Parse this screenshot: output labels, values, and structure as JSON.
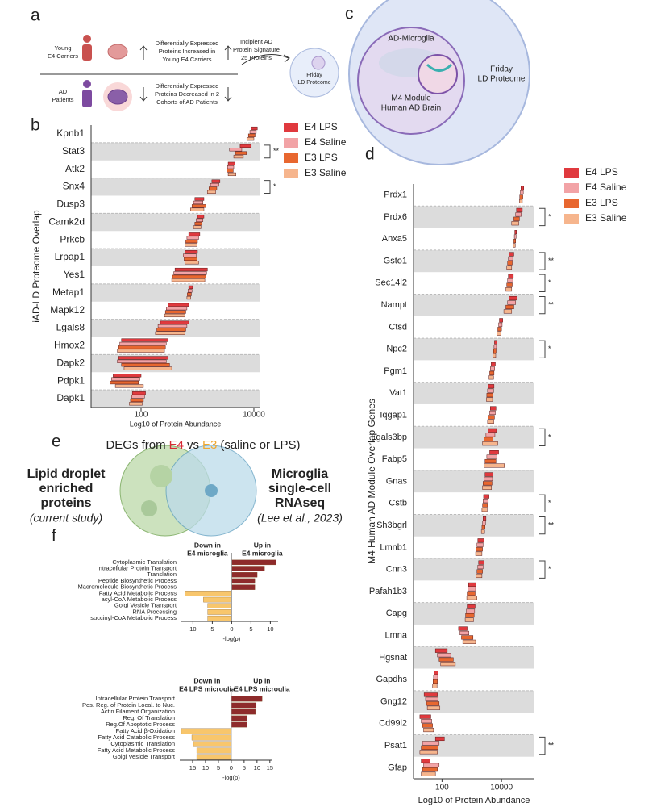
{
  "panel_labels": [
    "a",
    "b",
    "c",
    "d",
    "e",
    "f"
  ],
  "panel_a": {
    "young": [
      "Young",
      "E4 Carriers"
    ],
    "young_desc": [
      "Differentially Expressed",
      "Proteins Increased in",
      "Young E4 Carriers"
    ],
    "ad": [
      "AD",
      "Patients"
    ],
    "ad_desc": [
      "Differentially Expressed",
      "Proteins Decreased in 2",
      "Cohorts of AD Patients"
    ],
    "signature": [
      "Incipient AD",
      "Protein Signature",
      "25 Proteins"
    ],
    "friday": [
      "Friday",
      "LD Proteome"
    ]
  },
  "panel_c": {
    "microglia": "AD-Microglia",
    "m4": [
      "M4 Module",
      "Human AD Brain"
    ],
    "friday": [
      "Friday",
      "LD Proteome"
    ]
  },
  "panel_e": {
    "title": [
      "DEGs from",
      "E4",
      "vs",
      "E3",
      "(saline or LPS)"
    ],
    "left": [
      "Lipid droplet",
      "enriched",
      "proteins"
    ],
    "left_note": "(current study)",
    "right": [
      "Microglia",
      "single-cell",
      "RNAseq"
    ],
    "right_note": "(Lee et al., 2023)"
  },
  "chart_data": [
    {
      "type": "range_bar",
      "y_label": "iAD-LD Proteome Overlap",
      "x_label": "Log10 of Protein Abundance",
      "xscale": "log",
      "xlim": [
        13,
        12600
      ],
      "xticks": [
        100,
        10000
      ],
      "row_shading": true,
      "legend": "top-right",
      "categories": [
        "Kpnb1",
        "Stat3",
        "Atk2",
        "Snx4",
        "Dusp3",
        "Camk2d",
        "Prkcb",
        "Lrpap1",
        "Yes1",
        "Metap1",
        "Mapk12",
        "Lgals8",
        "Hmox2",
        "Dapk2",
        "Pdpk1",
        "Dapk1"
      ],
      "significance": [
        null,
        "**",
        null,
        "*",
        null,
        null,
        null,
        null,
        null,
        null,
        null,
        null,
        null,
        null,
        null,
        null
      ],
      "series": [
        {
          "name": "E4 LPS",
          "color": "#e0393e",
          "values": [
            [
              9000,
              11500
            ],
            [
              5700,
              9000
            ],
            [
              3500,
              4600
            ],
            [
              1800,
              2500
            ],
            [
              900,
              1300
            ],
            [
              1000,
              1300
            ],
            [
              700,
              1100
            ],
            [
              600,
              1000
            ],
            [
              400,
              1500
            ],
            [
              700,
              820
            ],
            [
              300,
              700
            ],
            [
              220,
              700
            ],
            [
              45,
              300
            ],
            [
              40,
              300
            ],
            [
              32,
              100
            ],
            [
              70,
              120
            ]
          ]
        },
        {
          "name": "E4 Saline",
          "color": "#f2a3a6",
          "values": [
            [
              8500,
              11000
            ],
            [
              3700,
              6100
            ],
            [
              3400,
              4400
            ],
            [
              1700,
              2400
            ],
            [
              850,
              1250
            ],
            [
              950,
              1250
            ],
            [
              650,
              1050
            ],
            [
              560,
              950
            ],
            [
              380,
              1450
            ],
            [
              680,
              800
            ],
            [
              280,
              650
            ],
            [
              200,
              650
            ],
            [
              42,
              280
            ],
            [
              38,
              280
            ],
            [
              30,
              95
            ],
            [
              68,
              115
            ]
          ]
        },
        {
          "name": "E3 LPS",
          "color": "#e8672f",
          "values": [
            [
              8000,
              10500
            ],
            [
              4700,
              7400
            ],
            [
              3300,
              4300
            ],
            [
              1600,
              2200
            ],
            [
              800,
              1400
            ],
            [
              900,
              1200
            ],
            [
              620,
              1000
            ],
            [
              580,
              980
            ],
            [
              360,
              1400
            ],
            [
              660,
              780
            ],
            [
              270,
              620
            ],
            [
              190,
              620
            ],
            [
              40,
              270
            ],
            [
              45,
              320
            ],
            [
              28,
              90
            ],
            [
              65,
              110
            ]
          ]
        },
        {
          "name": "E3 Saline",
          "color": "#f6b58d",
          "values": [
            [
              7500,
              10000
            ],
            [
              4400,
              6500
            ],
            [
              3500,
              4800
            ],
            [
              1500,
              2100
            ],
            [
              750,
              1300
            ],
            [
              850,
              1150
            ],
            [
              600,
              980
            ],
            [
              600,
              1050
            ],
            [
              350,
              1350
            ],
            [
              650,
              760
            ],
            [
              260,
              600
            ],
            [
              180,
              600
            ],
            [
              38,
              260
            ],
            [
              50,
              350
            ],
            [
              35,
              110
            ],
            [
              62,
              105
            ]
          ]
        }
      ]
    },
    {
      "type": "range_bar",
      "y_label": "M4 Human AD Module Overlap Genes",
      "x_label": "Log10 of Protein Abundance",
      "xscale": "log",
      "xlim": [
        11,
        128000
      ],
      "xticks": [
        100,
        10000
      ],
      "row_shading": true,
      "legend": "top-right",
      "categories": [
        "Prdx1",
        "Prdx6",
        "Anxa5",
        "Gsto1",
        "Sec14l2",
        "Nampt",
        "Ctsd",
        "Npc2",
        "Pgm1",
        "Vat1",
        "Iqgap1",
        "Lgals3bp",
        "Fabp5",
        "Gnas",
        "Cstb",
        "Sh3bgrl",
        "Lmnb1",
        "Cnn3",
        "Pafah1b3",
        "Capg",
        "Lmna",
        "Hgsnat",
        "Gapdhs",
        "Gng12",
        "Cd99l2",
        "Psat1",
        "Gfap"
      ],
      "significance": [
        null,
        "*",
        null,
        "**",
        "*",
        "**",
        null,
        "*",
        null,
        null,
        null,
        "*",
        null,
        null,
        "*",
        "**",
        null,
        "*",
        null,
        null,
        null,
        null,
        null,
        null,
        null,
        "**",
        null
      ],
      "series": [
        {
          "name": "E4 LPS",
          "color": "#e0393e",
          "values": [
            [
              45000,
              56000
            ],
            [
              32000,
              50000
            ],
            [
              28000,
              32000
            ],
            [
              18000,
              26000
            ],
            [
              17000,
              25000
            ],
            [
              18000,
              33000
            ],
            [
              8500,
              11000
            ],
            [
              5800,
              7000
            ],
            [
              4500,
              6200
            ],
            [
              3600,
              5600
            ],
            [
              4200,
              6500
            ],
            [
              3500,
              6800
            ],
            [
              4000,
              8000
            ],
            [
              2800,
              5200
            ],
            [
              2500,
              3800
            ],
            [
              2400,
              3000
            ],
            [
              1600,
              2600
            ],
            [
              1700,
              2600
            ],
            [
              780,
              1400
            ],
            [
              700,
              1300
            ],
            [
              360,
              700
            ],
            [
              60,
              150
            ],
            [
              55,
              75
            ],
            [
              25,
              70
            ],
            [
              18,
              42
            ],
            [
              60,
              120
            ],
            [
              20,
              40
            ]
          ]
        },
        {
          "name": "E4 Saline",
          "color": "#f2a3a6",
          "values": [
            [
              43000,
              54000
            ],
            [
              30000,
              46000
            ],
            [
              27000,
              31000
            ],
            [
              17000,
              24000
            ],
            [
              16000,
              24000
            ],
            [
              16000,
              30000
            ],
            [
              8000,
              10500
            ],
            [
              5600,
              6800
            ],
            [
              4200,
              5900
            ],
            [
              3400,
              5400
            ],
            [
              4000,
              6200
            ],
            [
              3000,
              6000
            ],
            [
              3200,
              7000
            ],
            [
              2600,
              5000
            ],
            [
              2400,
              3600
            ],
            [
              2300,
              2900
            ],
            [
              1500,
              2400
            ],
            [
              1600,
              2400
            ],
            [
              740,
              1350
            ],
            [
              660,
              1250
            ],
            [
              400,
              800
            ],
            [
              70,
              200
            ],
            [
              52,
              72
            ],
            [
              28,
              75
            ],
            [
              20,
              45
            ],
            [
              22,
              80
            ],
            [
              24,
              80
            ]
          ]
        },
        {
          "name": "E3 LPS",
          "color": "#e8672f",
          "values": [
            [
              41000,
              52000
            ],
            [
              26000,
              40000
            ],
            [
              26000,
              30000
            ],
            [
              16000,
              23000
            ],
            [
              15000,
              23000
            ],
            [
              14000,
              26000
            ],
            [
              7500,
              10000
            ],
            [
              5400,
              6600
            ],
            [
              4000,
              5600
            ],
            [
              3200,
              5200
            ],
            [
              3600,
              5800
            ],
            [
              2600,
              5200
            ],
            [
              2800,
              6500
            ],
            [
              2400,
              4800
            ],
            [
              2300,
              3400
            ],
            [
              2200,
              2800
            ],
            [
              1400,
              2300
            ],
            [
              1500,
              2300
            ],
            [
              700,
              1300
            ],
            [
              620,
              1200
            ],
            [
              450,
              1100
            ],
            [
              80,
              240
            ],
            [
              50,
              70
            ],
            [
              30,
              80
            ],
            [
              22,
              48
            ],
            [
              20,
              75
            ],
            [
              22,
              70
            ]
          ]
        },
        {
          "name": "E3 Saline",
          "color": "#f6b58d",
          "values": [
            [
              40000,
              50000
            ],
            [
              22000,
              38000
            ],
            [
              25000,
              29000
            ],
            [
              15000,
              22000
            ],
            [
              14000,
              22000
            ],
            [
              12000,
              22000
            ],
            [
              7000,
              9500
            ],
            [
              5200,
              6400
            ],
            [
              3800,
              5400
            ],
            [
              3100,
              5000
            ],
            [
              3400,
              5500
            ],
            [
              2300,
              7500
            ],
            [
              2600,
              12500
            ],
            [
              2300,
              4600
            ],
            [
              2200,
              3300
            ],
            [
              2100,
              2700
            ],
            [
              1350,
              2200
            ],
            [
              1400,
              2200
            ],
            [
              680,
              1500
            ],
            [
              600,
              1150
            ],
            [
              500,
              1350
            ],
            [
              90,
              280
            ],
            [
              48,
              68
            ],
            [
              32,
              85
            ],
            [
              24,
              52
            ],
            [
              18,
              70
            ],
            [
              20,
              60
            ]
          ]
        }
      ]
    },
    {
      "type": "diverging_bar",
      "left_header": [
        "Down in",
        "E4 microglia"
      ],
      "right_header": [
        "Up in",
        "E4 microglia"
      ],
      "x_label": "-log(p)",
      "xlim": [
        -13,
        12
      ],
      "xticks": [
        {
          "value": -10,
          "label": "10"
        },
        {
          "value": -5,
          "label": "5"
        },
        0,
        5,
        10
      ],
      "up_color": "#8e2b2b",
      "down_color": "#f8c66c",
      "up_label_color": "#b3262b",
      "down_label_color": "#e9a322",
      "categories": [
        "Cytoplasmic Translation",
        "Intracellular Protein Transport",
        "Translation",
        "Peptide Biosynthetic Process",
        "Macromolecule Biosynthetic Process",
        "Fatty Acid Metabolic Process",
        "acyl-CoA Metabolic Process",
        "Golgi Vesicle Transport",
        "RNA Processing",
        "succinyl-CoA Metabolic Process"
      ],
      "values": [
        11.5,
        8.5,
        6.6,
        6,
        6,
        -12,
        -7.3,
        -6.2,
        -6.2,
        -6.2
      ]
    },
    {
      "type": "diverging_bar",
      "left_header": [
        "Down in",
        "E4 LPS microglia"
      ],
      "right_header": [
        "Up in",
        "E4 LPS microglia"
      ],
      "x_label": "-log(p)",
      "xlim": [
        -20,
        16
      ],
      "xticks": [
        {
          "value": -15,
          "label": "15"
        },
        {
          "value": -10,
          "label": "10"
        },
        {
          "value": -5,
          "label": "5"
        },
        0,
        5,
        10,
        15
      ],
      "up_color": "#8e2b2b",
      "down_color": "#f8c66c",
      "up_label_color": "#b3262b",
      "down_label_color": "#e9a322",
      "categories": [
        "Intracellular Protein Transport",
        "Pos. Reg. of Protein Local. to Nuc.",
        "Actin Filament Organization",
        "Reg. Of Translation",
        "Reg.Of Apoptotic Process",
        "Fatty Acid β-Oxidation",
        "Fatty Acid Catabolic Process",
        "Cytoplasmic Translation",
        "Fatty Acid Metabolic Process",
        "Golgi Vesicle Transport"
      ],
      "values": [
        12,
        9.7,
        9.4,
        6.2,
        6.2,
        -19.4,
        -15.3,
        -14.7,
        -13.4,
        -13.4
      ]
    }
  ]
}
